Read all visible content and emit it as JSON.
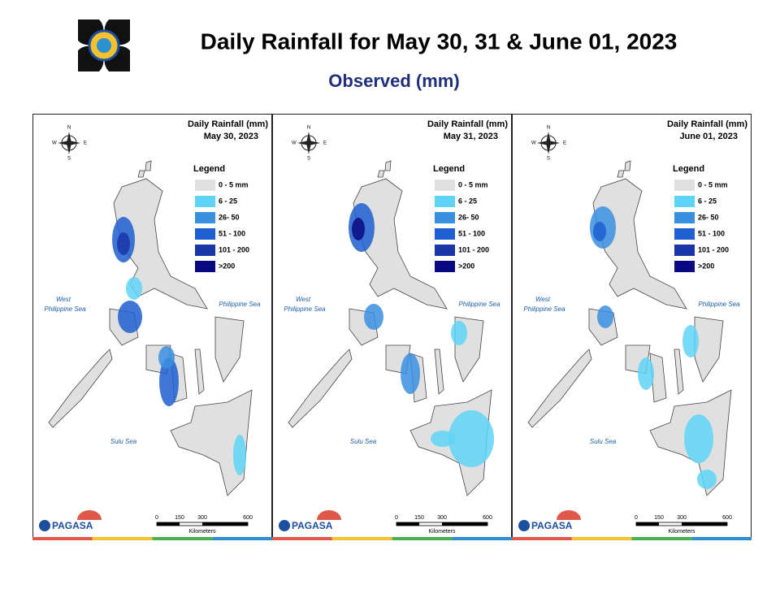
{
  "header": {
    "title": "Daily Rainfall for May 30, 31 & June 01, 2023",
    "subtitle": "Observed (mm)"
  },
  "panels": [
    {
      "title": "Daily Rainfall (mm)",
      "date": "May 30, 2023"
    },
    {
      "title": "Daily Rainfall (mm)",
      "date": "May 31, 2023"
    },
    {
      "title": "Daily Rainfall (mm)",
      "date": "June 01, 2023"
    }
  ],
  "legend": {
    "title": "Legend",
    "items": [
      {
        "label": "0 - 5 mm",
        "color": "#e0e0e0"
      },
      {
        "label": "6 - 25",
        "color": "#5fd3f5"
      },
      {
        "label": "26- 50",
        "color": "#3a8fe0"
      },
      {
        "label": "51 - 100",
        "color": "#1f5fd0"
      },
      {
        "label": "101 - 200",
        "color": "#1a35a8"
      },
      {
        "label": ">200",
        "color": "#0a0a80"
      }
    ]
  },
  "map_labels": {
    "west_sea": [
      "West",
      "Philippine Sea"
    ],
    "east_sea": "Philippine Sea",
    "sulu_sea": "Sulu Sea"
  },
  "compass": {
    "n": "N",
    "s": "S",
    "e": "E",
    "w": "W"
  },
  "scale": {
    "ticks": [
      "0",
      "150",
      "300",
      "600"
    ],
    "unit": "Kilometers"
  },
  "logo": {
    "name": "PAGASA"
  }
}
